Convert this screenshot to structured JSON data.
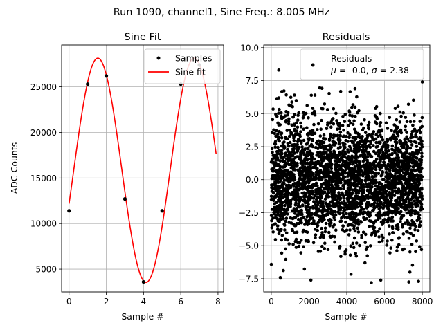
{
  "figure": {
    "suptitle": "Run 1090, channel1, Sine Freq.: 8.005 MHz"
  },
  "chart_data": [
    {
      "type": "line",
      "title": "Sine Fit",
      "xlabel": "Sample #",
      "ylabel": "ADC Counts",
      "xlim": [
        -0.4,
        8.3
      ],
      "ylim": [
        2500,
        29600
      ],
      "xticks": [
        0,
        2,
        4,
        6,
        8
      ],
      "yticks": [
        5000,
        10000,
        15000,
        20000,
        25000
      ],
      "grid": true,
      "legend_position": "top-right",
      "series": [
        {
          "name": "Samples",
          "kind": "scatter",
          "color": "#000000",
          "x": [
            0,
            1,
            2,
            3,
            4,
            5,
            6,
            7
          ],
          "y": [
            11400,
            25300,
            26200,
            12700,
            3600,
            11400,
            25300,
            27400
          ]
        },
        {
          "name": "Sine fit",
          "kind": "line",
          "color": "#ff0000",
          "model": {
            "offset": 15850,
            "amplitude": 12300,
            "period": 5.18,
            "phase_zero_crossing": 0.25,
            "x_start": 0,
            "x_end": 7.9
          }
        }
      ]
    },
    {
      "type": "scatter",
      "title": "Residuals",
      "xlabel": "Sample #",
      "ylabel": "",
      "xlim": [
        -400,
        8400
      ],
      "ylim": [
        -8.5,
        10.2
      ],
      "xticks": [
        0,
        2000,
        4000,
        6000,
        8000
      ],
      "yticks": [
        -7.5,
        -5.0,
        -2.5,
        0.0,
        2.5,
        5.0,
        7.5,
        10.0
      ],
      "grid": true,
      "legend_position": "top-right",
      "series": [
        {
          "name": "Residuals\n$\\mu$ = -0.0, $\\sigma$ = 2.38",
          "kind": "scatter",
          "color": "#000000",
          "x_range": [
            0,
            8000
          ],
          "n_points": 8000,
          "mean": -0.0,
          "sigma": 2.38,
          "min": -7.8,
          "max": 8.3
        }
      ]
    }
  ],
  "labels": {
    "left_title": "Sine Fit",
    "left_xlabel": "Sample #",
    "left_ylabel": "ADC Counts",
    "left_xticks": [
      "0",
      "2",
      "4",
      "6",
      "8"
    ],
    "left_yticks": [
      "5000",
      "10000",
      "15000",
      "20000",
      "25000"
    ],
    "left_legend_samples": "Samples",
    "left_legend_fit": "Sine fit",
    "right_title": "Residuals",
    "right_xlabel": "Sample #",
    "right_xticks": [
      "0",
      "2000",
      "4000",
      "6000",
      "8000"
    ],
    "right_yticks": [
      "−7.5",
      "−5.0",
      "−2.5",
      "0.0",
      "2.5",
      "5.0",
      "7.5",
      "10.0"
    ],
    "right_legend_line1": "Residuals",
    "right_legend_mu": "μ",
    "right_legend_mid": " = -0.0, ",
    "right_legend_sigma": "σ",
    "right_legend_end": " = 2.38"
  }
}
